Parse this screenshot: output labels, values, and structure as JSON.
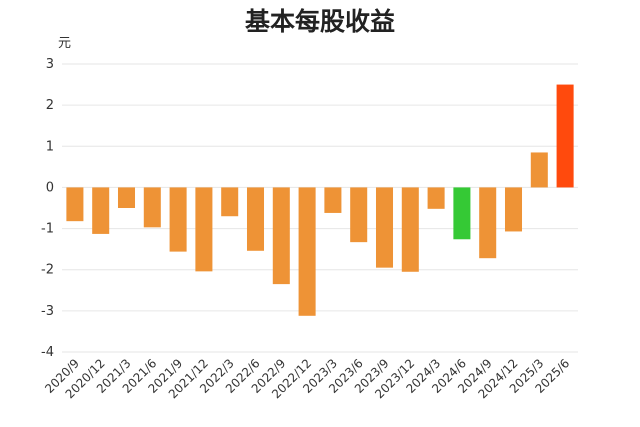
{
  "chart_data": {
    "type": "bar",
    "title": "基本每股收益",
    "ylabel": "元",
    "xlabel": "",
    "ylim": [
      -4,
      3
    ],
    "yticks": [
      3,
      2,
      1,
      0,
      -1,
      -2,
      -3,
      -4
    ],
    "grid": true,
    "legend": "none",
    "categories": [
      "2020/9",
      "2020/12",
      "2021/3",
      "2021/6",
      "2021/9",
      "2021/12",
      "2022/3",
      "2022/6",
      "2022/9",
      "2022/12",
      "2023/3",
      "2023/6",
      "2023/9",
      "2023/12",
      "2024/3",
      "2024/6",
      "2024/9",
      "2024/12",
      "2025/3",
      "2025/6"
    ],
    "values": [
      -0.82,
      -1.13,
      -0.5,
      -0.97,
      -1.56,
      -2.04,
      -0.7,
      -1.54,
      -2.35,
      -3.12,
      -0.62,
      -1.33,
      -1.95,
      -2.05,
      -0.52,
      -1.26,
      -1.72,
      -1.07,
      0.85,
      2.5
    ],
    "colors": {
      "default": "#ee9336",
      "highlight_green": "#35c935",
      "highlight_red": "#ff4a0d"
    },
    "bar_color_keys": [
      "default",
      "default",
      "default",
      "default",
      "default",
      "default",
      "default",
      "default",
      "default",
      "default",
      "default",
      "default",
      "default",
      "default",
      "default",
      "highlight_green",
      "default",
      "default",
      "default",
      "highlight_red"
    ]
  }
}
